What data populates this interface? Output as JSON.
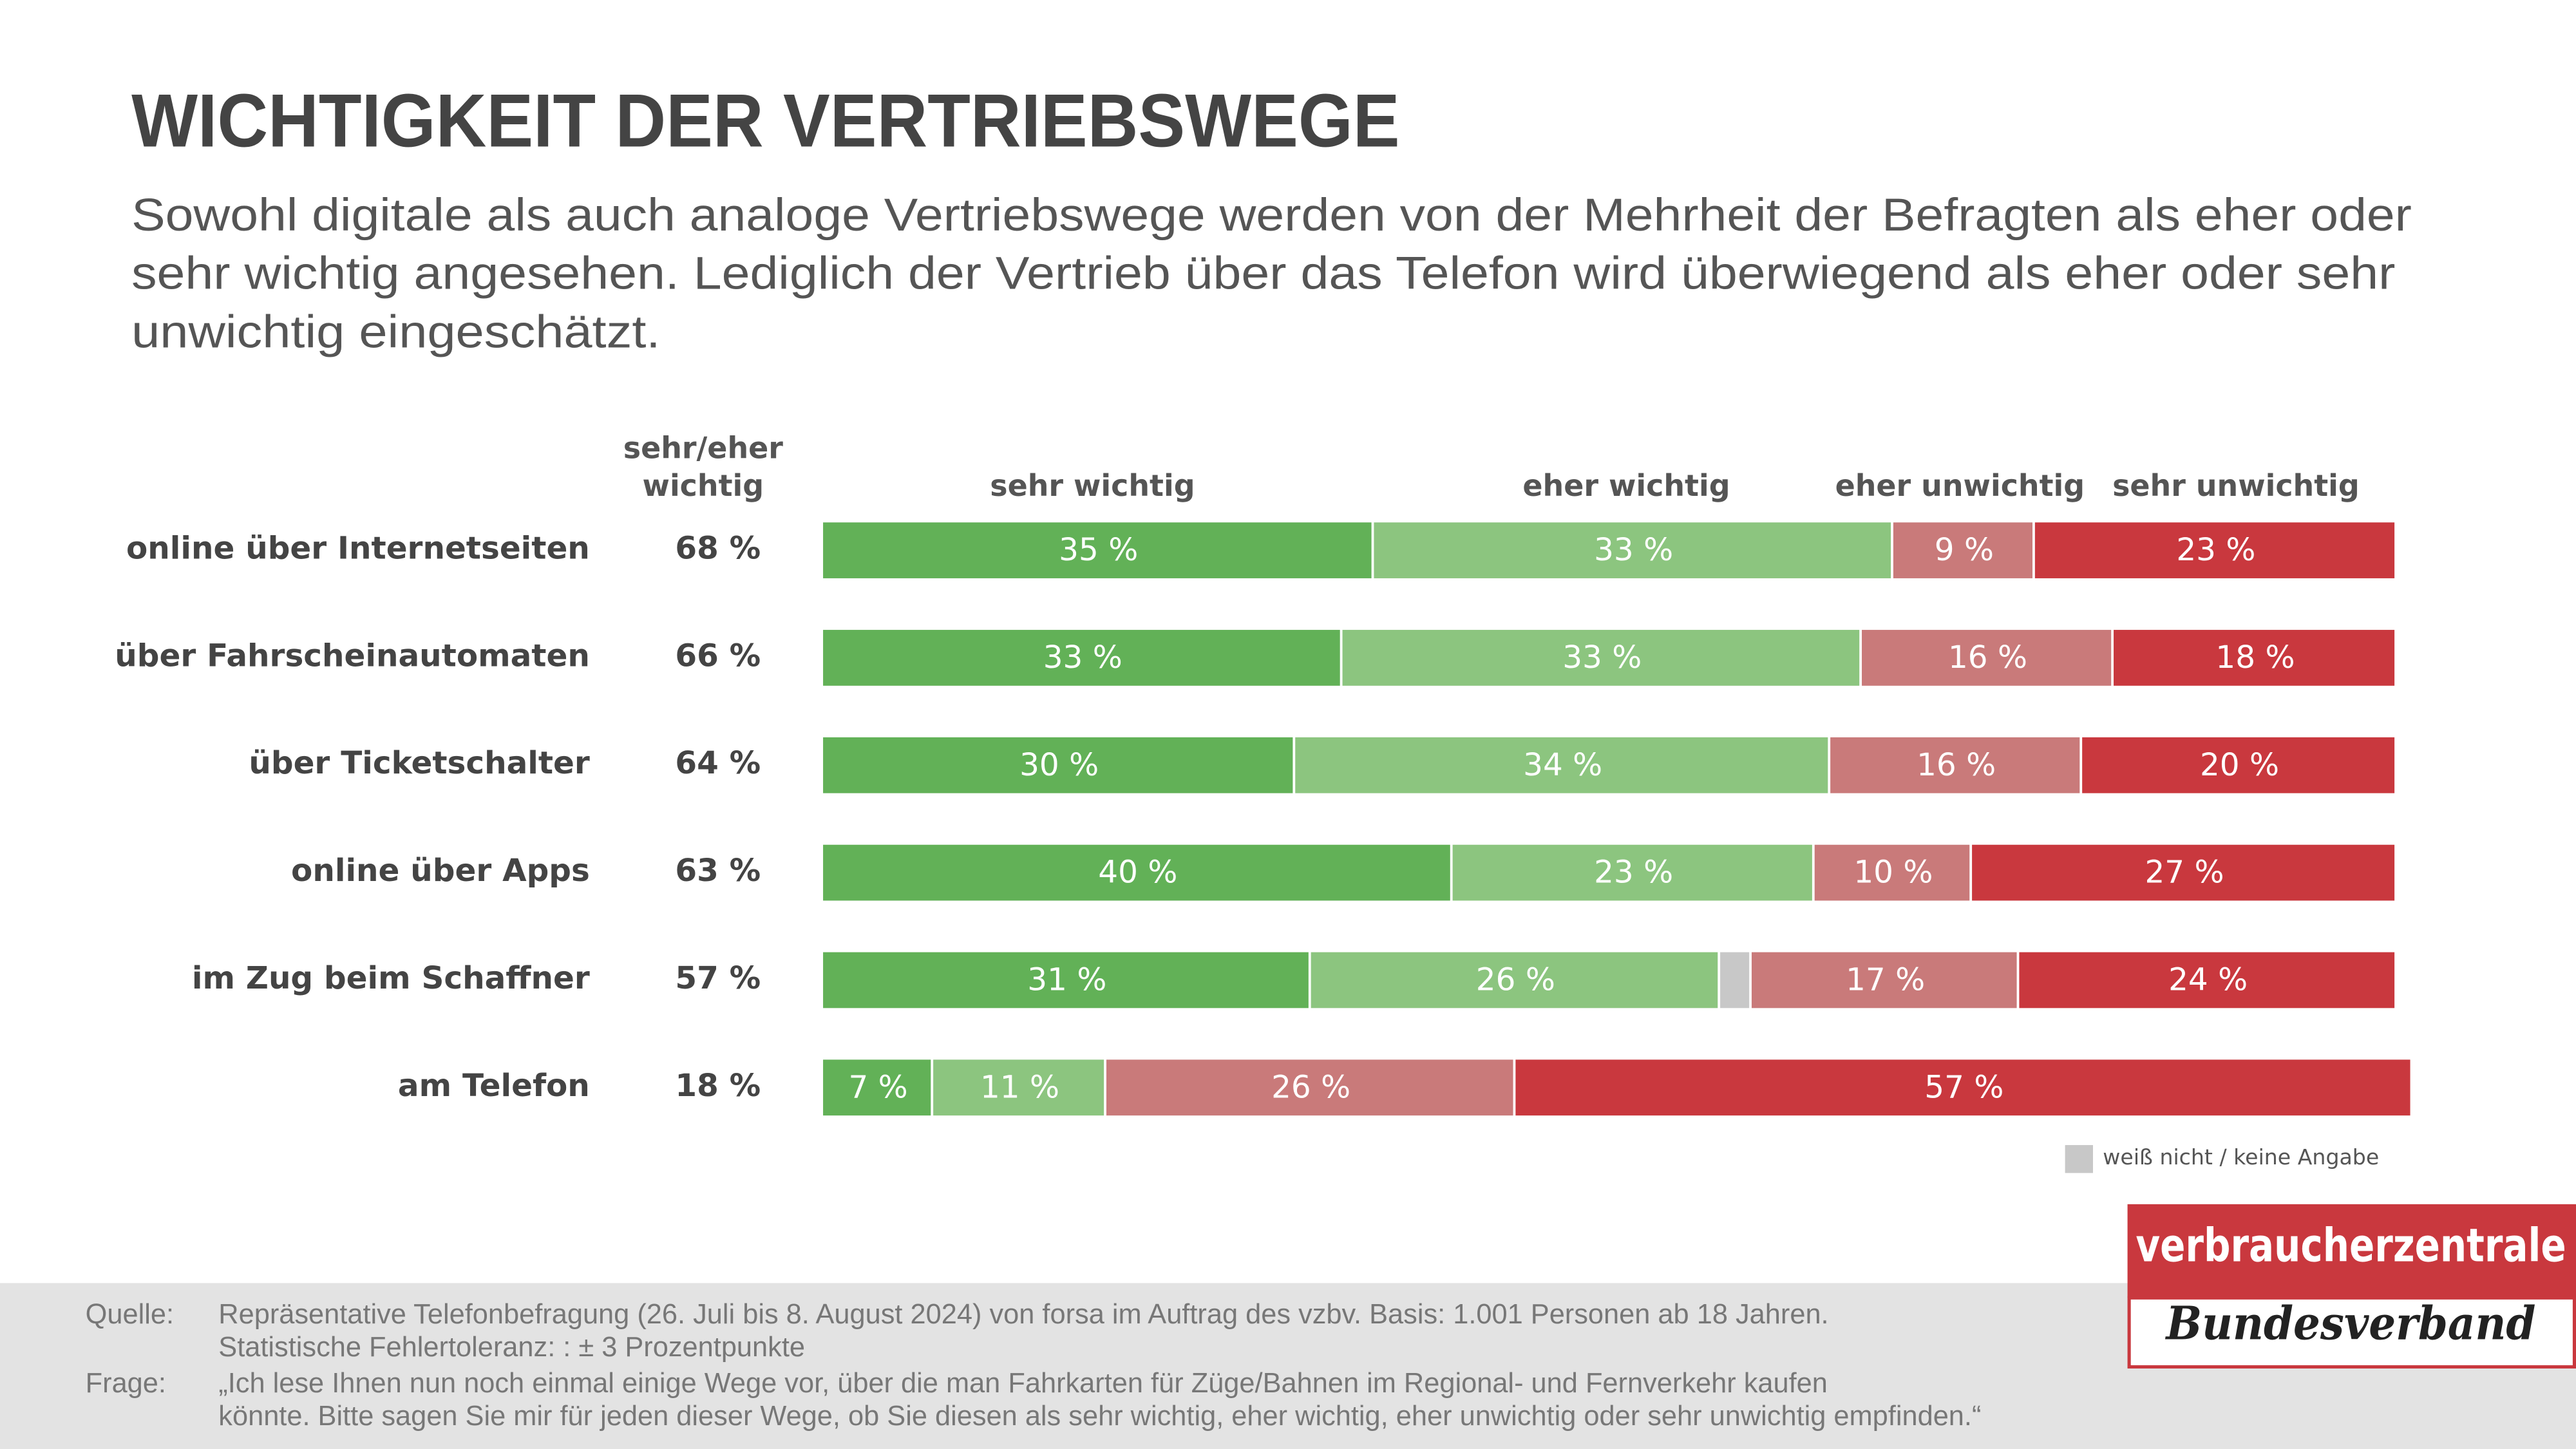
{
  "chart_data": {
    "type": "bar",
    "orientation": "horizontal",
    "stacked": true,
    "title": "WICHTIGKEIT DER VERTRIEBSWEGE",
    "subtitle": [
      "Sowohl digitale als auch analoge Vertriebswege werden von der Mehrheit der Befragten als eher oder",
      "sehr wichtig angesehen. Lediglich der Vertrieb über das Telefon wird überwiegend als eher oder sehr",
      "unwichtig eingeschätzt."
    ],
    "totals_header": [
      "sehr/eher",
      "wichtig"
    ],
    "categories": [
      "online über Internetseiten",
      "über Fahrscheinautomaten",
      "über Ticketschalter",
      "online über Apps",
      "im Zug beim Schaffner",
      "am Telefon"
    ],
    "totals": {
      "values": [
        68,
        66,
        64,
        63,
        57,
        18
      ],
      "value_labels": [
        "68 %",
        "66 %",
        "64 %",
        "63 %",
        "57 %",
        "18 %"
      ]
    },
    "xlim": [
      0,
      100
    ],
    "series": [
      {
        "name": "sehr wichtig",
        "color": "#62b157",
        "values": [
          35,
          33,
          30,
          40,
          31,
          7
        ],
        "value_labels": [
          "35 %",
          "33 %",
          "30 %",
          "40 %",
          "31 %",
          "7 %"
        ]
      },
      {
        "name": "eher wichtig",
        "color": "#8cc57f",
        "values": [
          33,
          33,
          34,
          23,
          26,
          11
        ],
        "value_labels": [
          "33 %",
          "33 %",
          "34 %",
          "23 %",
          "26 %",
          "11 %"
        ]
      },
      {
        "name": "weiß nicht / keine Angabe",
        "color": "#c8c8c8",
        "values": [
          0,
          0,
          0,
          0,
          2,
          0
        ]
      },
      {
        "name": "eher unwichtig",
        "color": "#c97a7a",
        "values": [
          9,
          16,
          16,
          10,
          17,
          26
        ],
        "value_labels": [
          "9 %",
          "16 %",
          "16 %",
          "10 %",
          "17 %",
          "26 %"
        ]
      },
      {
        "name": "sehr unwichtig",
        "color": "#c9383e",
        "values": [
          23,
          18,
          20,
          27,
          24,
          57
        ],
        "value_labels": [
          "23 %",
          "18 %",
          "20 %",
          "27 %",
          "24 %",
          "57 %"
        ]
      }
    ]
  },
  "footer": {
    "source_label": "Quelle:",
    "source": [
      "Repräsentative Telefonbefragung (26. Juli bis 8. August 2024) von forsa im Auftrag des vzbv. Basis: 1.001 Personen ab 18 Jahren.",
      "Statistische Fehlertoleranz: : ± 3 Prozentpunkte"
    ],
    "question_label": "Frage:",
    "question": [
      "„Ich lese Ihnen nun noch einmal einige Wege vor, über die man Fahrkarten für Züge/Bahnen im Regional- und Fernverkehr kaufen",
      "könnte. Bitte sagen Sie mir für jeden dieser Wege, ob Sie diesen als sehr wichtig, eher wichtig, eher unwichtig oder sehr unwichtig empfinden.“"
    ]
  },
  "logo": {
    "name": "verbraucherzentrale",
    "sub": "Bundesverband"
  }
}
